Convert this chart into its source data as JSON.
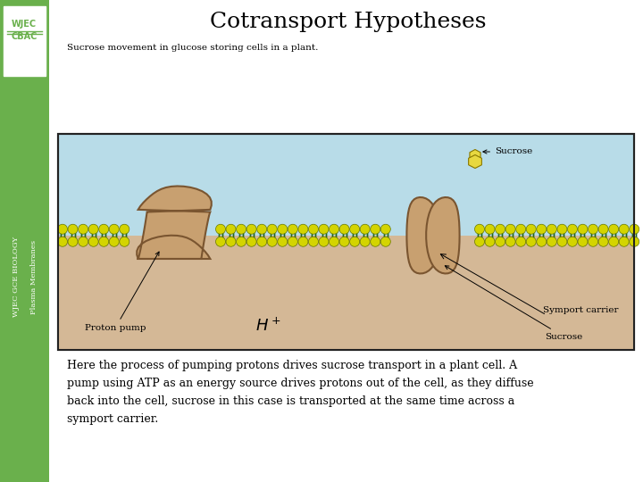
{
  "title": "Cotransport Hypotheses",
  "subtitle": "Sucrose movement in glucose storing cells in a plant.",
  "body_text": "Here the process of pumping protons drives sucrose transport in a plant cell. A\npump using ATP as an energy source drives protons out of the cell, as they diffuse\nback into the cell, sucrose in this case is transported at the same time across a\nsymport carrier.",
  "sidebar_color": "#6ab04c",
  "bg_color": "#ffffff",
  "diagram_bg_top": "#b8dce8",
  "diagram_bg_bottom": "#d4b896",
  "diagram_border": "#222222",
  "ball_color": "#d4d400",
  "ball_outline": "#667700",
  "tail_color": "#226622",
  "protein_color": "#c8a070",
  "protein_outline": "#7a5530",
  "sucrose_color": "#e8d840",
  "sucrose_outline": "#887700",
  "label_font": "DejaVu Serif",
  "title_fontsize": 18,
  "subtitle_fontsize": 7.5,
  "body_fontsize": 9,
  "label_fontsize": 7.5
}
